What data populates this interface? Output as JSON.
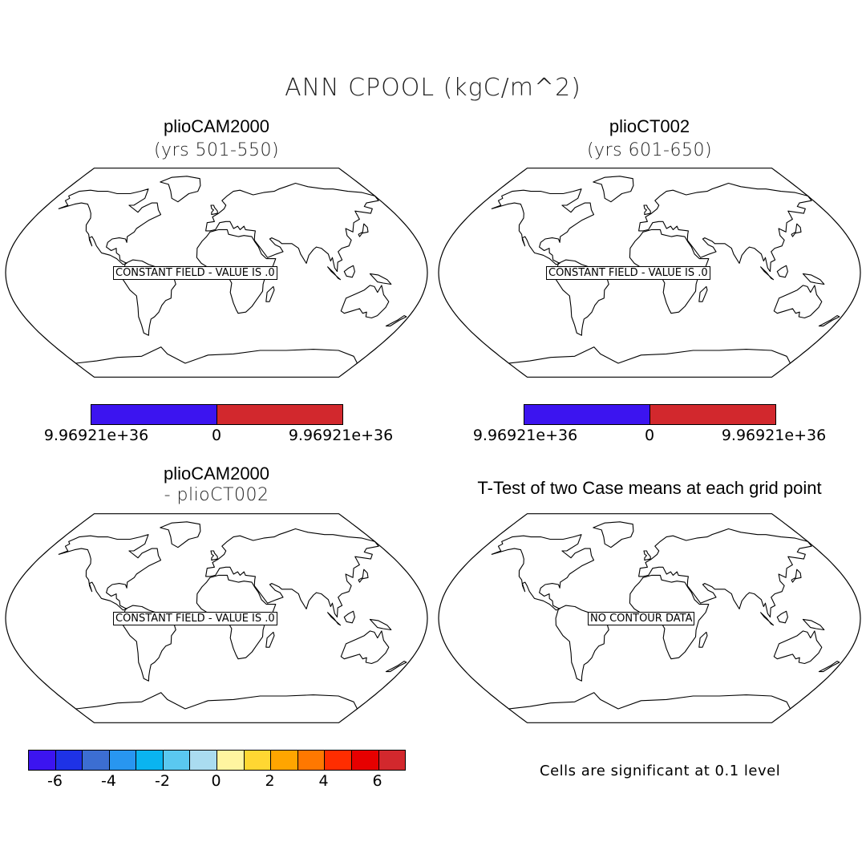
{
  "figure": {
    "title": "ANN CPOOL (kgC/m^2)"
  },
  "panels": [
    {
      "title": "plioCAM2000",
      "subtitle": "(yrs 501-550)",
      "map_label": "CONSTANT FIELD - VALUE IS .0"
    },
    {
      "title": "plioCT002",
      "subtitle": "(yrs 601-650)",
      "map_label": "CONSTANT FIELD - VALUE IS .0"
    },
    {
      "title": "plioCAM2000",
      "subtitle": "- plioCT002",
      "map_label": "CONSTANT FIELD - VALUE IS .0"
    },
    {
      "title": "T-Test of two Case means at each grid point",
      "subtitle": "",
      "map_label": "NO CONTOUR DATA"
    }
  ],
  "colorbar_top": {
    "colors": [
      "#3c14f0",
      "#d2282d"
    ],
    "labels": [
      "9.96921e+36",
      "0",
      "9.96921e+36"
    ]
  },
  "colorbar_diff": {
    "colors": [
      "#3c14f0",
      "#1e32e6",
      "#3c6ed2",
      "#2896f0",
      "#0ab4f0",
      "#5ac8f0",
      "#aadcf0",
      "#fff5a0",
      "#ffd732",
      "#ffa500",
      "#ff7800",
      "#ff2d00",
      "#e60000",
      "#d2282d"
    ],
    "labels": [
      "-6",
      "-4",
      "-2",
      "0",
      "2",
      "4",
      "6"
    ]
  },
  "significance_note": "Cells are significant at 0.1 level",
  "chart_data": [
    {
      "type": "heatmap",
      "title": "plioCAM2000 (yrs 501-550)",
      "field": "ANN CPOOL (kgC/m^2)",
      "annotation": "CONSTANT FIELD - VALUE IS .0",
      "value": 0.0,
      "colorbar": {
        "levels": [
          9.96921e+36,
          0,
          9.96921e+36
        ]
      }
    },
    {
      "type": "heatmap",
      "title": "plioCT002 (yrs 601-650)",
      "field": "ANN CPOOL (kgC/m^2)",
      "annotation": "CONSTANT FIELD - VALUE IS .0",
      "value": 0.0,
      "colorbar": {
        "levels": [
          9.96921e+36,
          0,
          9.96921e+36
        ]
      }
    },
    {
      "type": "heatmap",
      "title": "plioCAM2000 - plioCT002",
      "field": "ANN CPOOL (kgC/m^2)",
      "annotation": "CONSTANT FIELD - VALUE IS .0",
      "value": 0.0,
      "colorbar": {
        "levels": [
          -6,
          -4,
          -2,
          0,
          2,
          4,
          6
        ]
      }
    },
    {
      "type": "heatmap",
      "title": "T-Test of two Case means at each grid point",
      "annotation": "NO CONTOUR DATA",
      "note": "Cells are significant at 0.1 level"
    }
  ]
}
